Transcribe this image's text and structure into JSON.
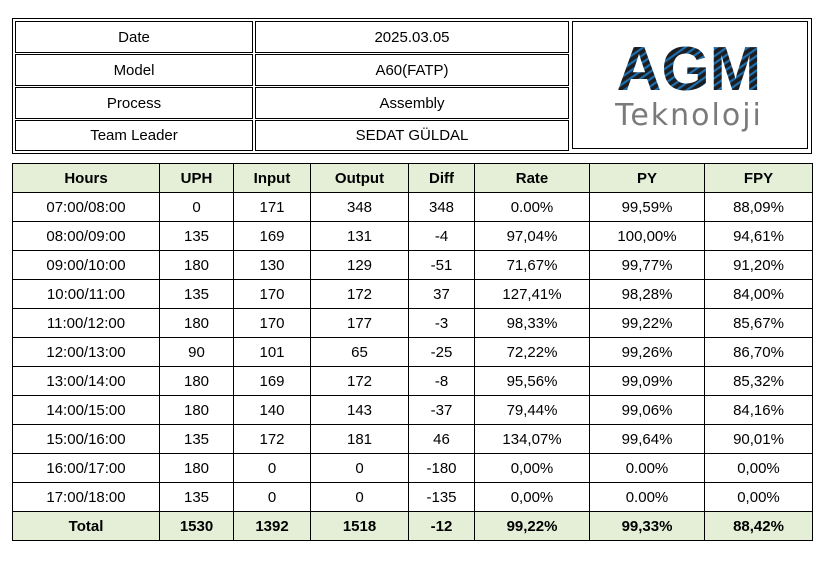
{
  "info": {
    "date_label": "Date",
    "date_value": "2025.03.05",
    "model_label": "Model",
    "model_value": "A60(FATP)",
    "process_label": "Process",
    "process_value": "Assembly",
    "leader_label": "Team Leader",
    "leader_value": "SEDAT GÜLDAL"
  },
  "logo": {
    "mark": "AGM",
    "subtitle": "Teknoloji",
    "colors": {
      "blue": "#1c6fb0",
      "dark": "#1d1d1f",
      "gray": "#7a7a7a"
    }
  },
  "table": {
    "header_bg": "#e5efd7",
    "columns": [
      "Hours",
      "UPH",
      "Input",
      "Output",
      "Diff",
      "Rate",
      "PY",
      "FPY"
    ],
    "rows": [
      [
        "07:00/08:00",
        "0",
        "171",
        "348",
        "348",
        "0.00%",
        "99,59%",
        "88,09%"
      ],
      [
        "08:00/09:00",
        "135",
        "169",
        "131",
        "-4",
        "97,04%",
        "100,00%",
        "94,61%"
      ],
      [
        "09:00/10:00",
        "180",
        "130",
        "129",
        "-51",
        "71,67%",
        "99,77%",
        "91,20%"
      ],
      [
        "10:00/11:00",
        "135",
        "170",
        "172",
        "37",
        "127,41%",
        "98,28%",
        "84,00%"
      ],
      [
        "11:00/12:00",
        "180",
        "170",
        "177",
        "-3",
        "98,33%",
        "99,22%",
        "85,67%"
      ],
      [
        "12:00/13:00",
        "90",
        "101",
        "65",
        "-25",
        "72,22%",
        "99,26%",
        "86,70%"
      ],
      [
        "13:00/14:00",
        "180",
        "169",
        "172",
        "-8",
        "95,56%",
        "99,09%",
        "85,32%"
      ],
      [
        "14:00/15:00",
        "180",
        "140",
        "143",
        "-37",
        "79,44%",
        "99,06%",
        "84,16%"
      ],
      [
        "15:00/16:00",
        "135",
        "172",
        "181",
        "46",
        "134,07%",
        "99,64%",
        "90,01%"
      ],
      [
        "16:00/17:00",
        "180",
        "0",
        "0",
        "-180",
        "0,00%",
        "0.00%",
        "0,00%"
      ],
      [
        "17:00/18:00",
        "135",
        "0",
        "0",
        "-135",
        "0,00%",
        "0.00%",
        "0,00%"
      ]
    ],
    "total": [
      "Total",
      "1530",
      "1392",
      "1518",
      "-12",
      "99,22%",
      "99,33%",
      "88,42%"
    ]
  }
}
